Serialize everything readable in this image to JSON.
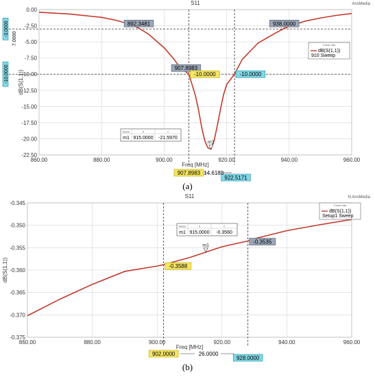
{
  "chart_data": [
    {
      "id": "a",
      "type": "line",
      "title": "S11",
      "corner_label": "AnsMedia",
      "xlabel": "Freq [MHz]",
      "ylabel": "dB(S(1,1))",
      "xlim": [
        860,
        960
      ],
      "ylim": [
        -22.5,
        0
      ],
      "x_ticks": [
        "860.00",
        "880.00",
        "900.00",
        "920.00",
        "940.00",
        "960.00"
      ],
      "y_ticks": [
        "0.00",
        "-2.50",
        "-5.00",
        "-7.50",
        "-10.00",
        "-12.50",
        "-15.00",
        "-17.50",
        "-20.00",
        "-22.50"
      ],
      "grid": true,
      "series": [
        {
          "name": "dB(S(1,1))",
          "sub": "910   Sweep",
          "color": "#c0392b",
          "x": [
            860,
            870,
            880,
            885,
            890,
            892.35,
            895,
            900,
            903,
            905,
            907.9,
            909,
            910,
            911,
            912,
            913,
            914,
            915,
            916,
            917,
            918,
            919,
            920,
            922.5,
            925,
            930,
            935,
            938,
            940,
            945,
            950,
            955,
            960
          ],
          "y": [
            -0.4,
            -0.7,
            -1.2,
            -1.7,
            -2.4,
            -3.0,
            -3.8,
            -5.9,
            -7.6,
            -8.9,
            -10.0,
            -11.7,
            -13.3,
            -15.5,
            -18.2,
            -20.3,
            -21.4,
            -21.6,
            -20.3,
            -18.0,
            -15.5,
            -13.2,
            -11.6,
            -10.0,
            -7.7,
            -5.2,
            -3.8,
            -3.0,
            -2.6,
            -1.8,
            -1.3,
            -0.9,
            -0.6
          ]
        }
      ],
      "marker": {
        "label": "m1",
        "x": 915.0,
        "y": -21.597
      },
      "marker_table": {
        "headers": [
          "Name",
          "X",
          "Y"
        ],
        "row": [
          "m1",
          "915.0000",
          "-21.5970"
        ]
      },
      "legend_title": "Curve Info",
      "hlines": [
        {
          "y": -3.0,
          "label": "-3.0000",
          "label_right": "7.0000"
        },
        {
          "y": -10.0,
          "label": "-10.0000"
        }
      ],
      "vlines": [
        {
          "x": 907.8983,
          "label": "907.8983"
        },
        {
          "x": 922.5171,
          "label": "922.5171"
        }
      ],
      "delta_label": "14.6188",
      "point_labels": [
        {
          "text": "892.3481",
          "x": 892.35,
          "y": -3.0
        },
        {
          "text": "938.0000",
          "x": 938.0,
          "y": -3.0
        },
        {
          "text": "907.8983",
          "x": 907.9,
          "y": -10.0
        },
        {
          "text": "-10.0000",
          "x": 907.9,
          "y": -10.0
        },
        {
          "text": "-10.0000",
          "x": 922.5,
          "y": -10.0
        }
      ],
      "caption": "(a)"
    },
    {
      "id": "b",
      "type": "line",
      "title": "S11",
      "corner_label": "N AnsMedia",
      "xlabel": "Freq [MHz]",
      "ylabel": "dB(S(1,1))",
      "xlim": [
        860,
        960
      ],
      "ylim": [
        -0.375,
        -0.345
      ],
      "x_ticks": [
        "860.00",
        "880.00",
        "900.00",
        "920.00",
        "940.00",
        "960.00"
      ],
      "y_ticks": [
        "-0.345",
        "-0.350",
        "-0.355",
        "-0.360",
        "-0.365",
        "-0.370",
        "-0.375"
      ],
      "grid": true,
      "series": [
        {
          "name": "dB(S(1,1))",
          "sub": "Setup1   Sweep",
          "color": "#c0392b",
          "x": [
            860,
            870,
            880,
            890,
            900,
            902,
            910,
            915,
            920,
            928,
            930,
            940,
            950,
            960
          ],
          "y": [
            -0.3702,
            -0.3665,
            -0.3632,
            -0.3603,
            -0.3591,
            -0.3588,
            -0.3572,
            -0.356,
            -0.3548,
            -0.3535,
            -0.353,
            -0.3512,
            -0.3499,
            -0.3487
          ]
        }
      ],
      "marker": {
        "label": "m1",
        "x": 915.0,
        "y": -0.356
      },
      "marker_table": {
        "headers": [
          "Name",
          "X",
          "Y"
        ],
        "row": [
          "m1",
          "915.0000",
          "-0.3560"
        ]
      },
      "legend_title": "Curve Info",
      "hlines": [],
      "vlines": [
        {
          "x": 902.0,
          "label": "902.0000"
        },
        {
          "x": 928.0,
          "label": "928.0000"
        }
      ],
      "delta_label": "26.0000",
      "point_labels": [
        {
          "text": "-0.3588",
          "x": 902.0,
          "y": -0.3588
        },
        {
          "text": "-0.3535",
          "x": 928.0,
          "y": -0.3535
        }
      ],
      "caption": "(b)"
    }
  ],
  "colors": {
    "curve": "#c0392b",
    "x_label_bg": "#f5e663",
    "x_label_border": "#b7a300",
    "y_label_bg": "#7fd8e6",
    "y_label_border": "#2a8da0",
    "marker_label_bg": "#9aa7b8",
    "grid": "#d3d3d3"
  }
}
